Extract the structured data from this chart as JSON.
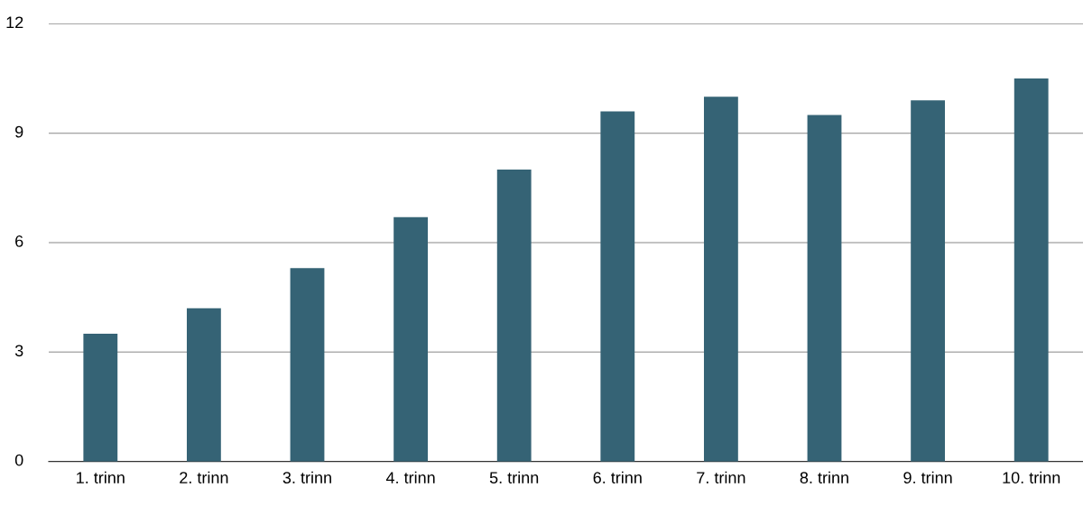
{
  "chart_data": {
    "type": "bar",
    "categories": [
      "1. trinn",
      "2. trinn",
      "3. trinn",
      "4. trinn",
      "5. trinn",
      "6. trinn",
      "7. trinn",
      "8. trinn",
      "9. trinn",
      "10. trinn"
    ],
    "values": [
      3.5,
      4.2,
      5.3,
      6.7,
      8.0,
      9.6,
      10.0,
      9.5,
      9.9,
      10.5
    ],
    "color": "#356375",
    "ylim": [
      0,
      12
    ],
    "yticks": [
      0,
      3,
      6,
      9,
      12
    ],
    "grid": "y"
  }
}
